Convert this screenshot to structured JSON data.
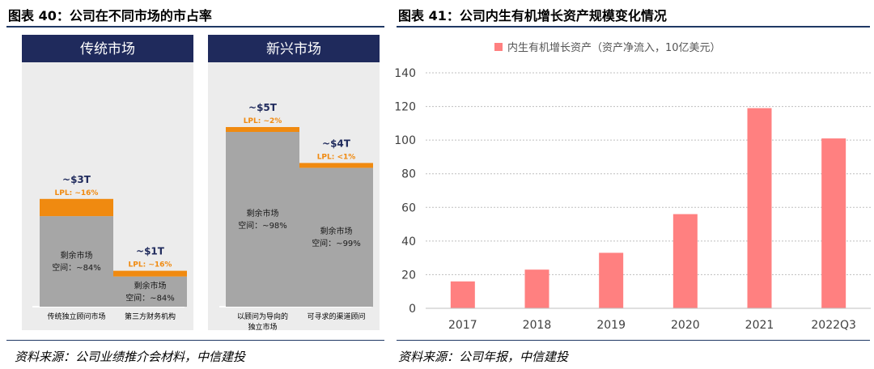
{
  "left_figure": {
    "title": "图表 40：公司在不同市场的市占率",
    "source": "资料来源：公司业绩推介会材料，中信建投",
    "panels": [
      {
        "header": "传统市场",
        "bars": [
          {
            "total": "~$3T",
            "share": "LPL: ~16%",
            "remaining": [
              "剩余市场",
              "空间：~84%"
            ],
            "category": [
              "传统独立顾问市场"
            ],
            "total_trillion": 3,
            "lpl_share_pct": 16
          },
          {
            "total": "~$1T",
            "share": "LPL: ~16%",
            "remaining": [
              "剩余市场",
              "空间：~84%"
            ],
            "category": [
              "第三方财务机构"
            ],
            "total_trillion": 1,
            "lpl_share_pct": 16
          }
        ]
      },
      {
        "header": "新兴市场",
        "bars": [
          {
            "total": "~$5T",
            "share": "LPL: ~2%",
            "remaining": [
              "剩余市场",
              "空间：~98%"
            ],
            "category": [
              "以顾问为导向的",
              "独立市场"
            ],
            "total_trillion": 5,
            "lpl_share_pct": 2
          },
          {
            "total": "~$4T",
            "share": "LPL: <1%",
            "remaining": [
              "剩余市场",
              "空间：~99%"
            ],
            "category": [
              "可寻求的渠道顾问"
            ],
            "total_trillion": 4,
            "lpl_share_pct": 1
          }
        ]
      }
    ]
  },
  "right_figure": {
    "title": "图表 41：公司内生有机增长资产规模变化情况",
    "source": "资料来源：公司年报，中信建投"
  },
  "chart_data": [
    {
      "type": "bar",
      "stacked": true,
      "categories": [
        "传统独立顾问市场",
        "第三方财务机构",
        "以顾问为导向的独立市场",
        "可寻求的渠道顾问"
      ],
      "series": [
        {
          "name": "LPL",
          "values": [
            0.48,
            0.16,
            0.1,
            0.04
          ]
        },
        {
          "name": "剩余市场空间",
          "values": [
            2.52,
            0.84,
            4.9,
            3.96
          ]
        }
      ],
      "unit": "T",
      "colors": [
        "#f08a10",
        "#a6a6a6"
      ]
    },
    {
      "type": "bar",
      "categories": [
        "2017",
        "2018",
        "2019",
        "2020",
        "2021",
        "2022Q3"
      ],
      "values": [
        16,
        23,
        33,
        56,
        119,
        101
      ],
      "series_name": "内生有机增长资产（资产净流入，10亿美元）",
      "ylim": [
        0,
        140
      ],
      "yticks": [
        0,
        20,
        40,
        60,
        80,
        100,
        120,
        140
      ],
      "legend": "top",
      "grid": "horizontal dashed",
      "color": "#ff8080"
    }
  ],
  "colors": {
    "header_bg": "#1f2a5c",
    "panel_bg": "#ececec",
    "lpl": "#f08a10",
    "remaining": "#a6a6a6",
    "bar": "#ff8080",
    "rule": "#1f3864"
  }
}
